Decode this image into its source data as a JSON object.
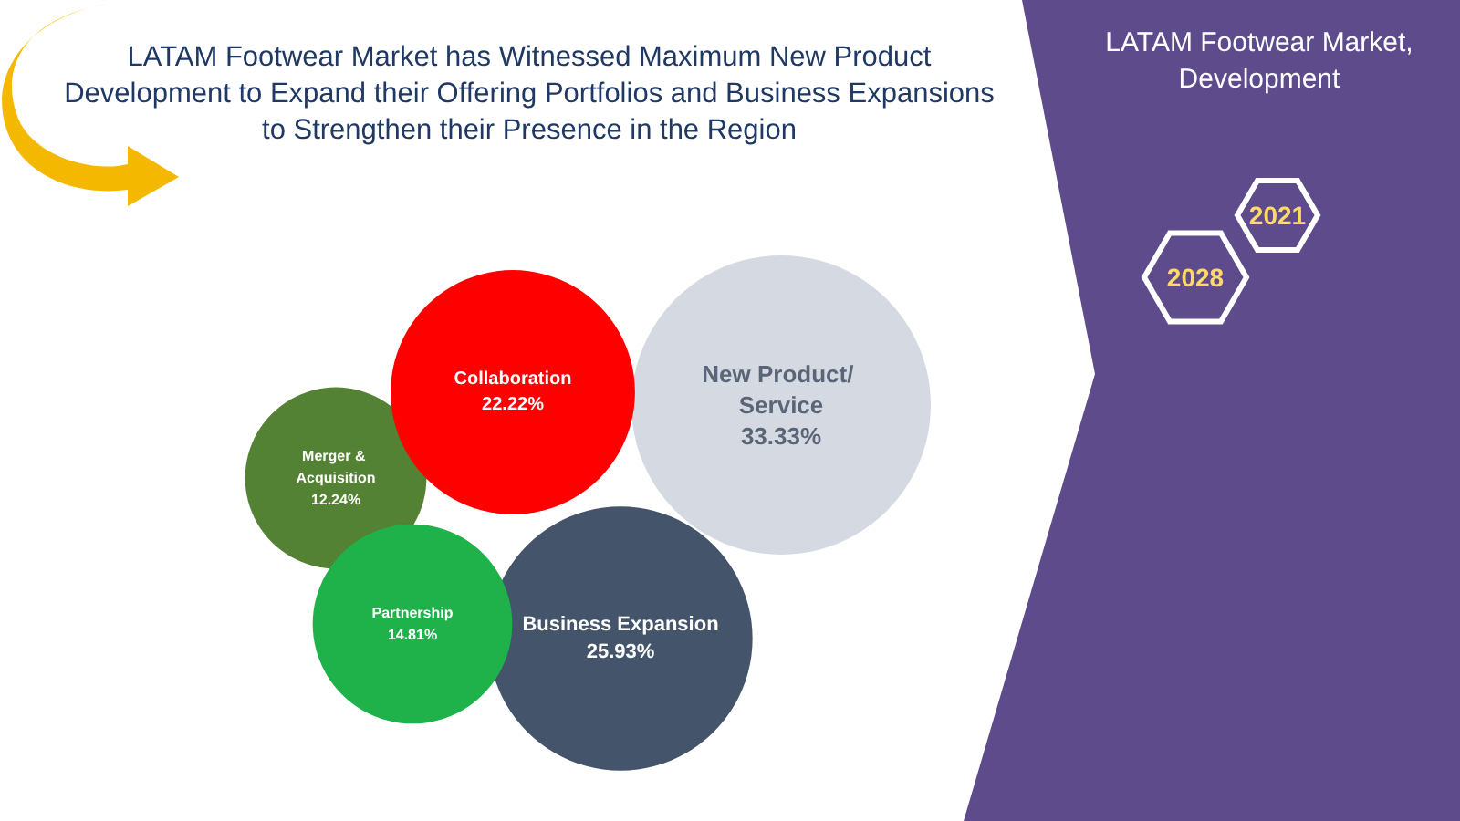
{
  "chart_data": {
    "type": "other",
    "title": "LATAM Footwear Market has Witnessed Maximum New Product Development to Expand their Offering Portfolios and Business Expansions to Strengthen their Presence in the Region",
    "subtitle": "LATAM Footwear Market, Development",
    "categories": [
      "New Product/ Service",
      "Business Expansion",
      "Merger & Acquisition",
      "Partnership",
      "Collaboration"
    ],
    "values": [
      33.33,
      25.93,
      12.24,
      14.81,
      22.22
    ],
    "value_labels": [
      "33.33%",
      "25.93%",
      "12.24%",
      "14.81%",
      "22.22%"
    ],
    "colors": [
      "#d5dae2",
      "#44546a",
      "#548235",
      "#1fb24a",
      "#ff0000"
    ],
    "annotations": [
      "2021",
      "2028"
    ]
  }
}
